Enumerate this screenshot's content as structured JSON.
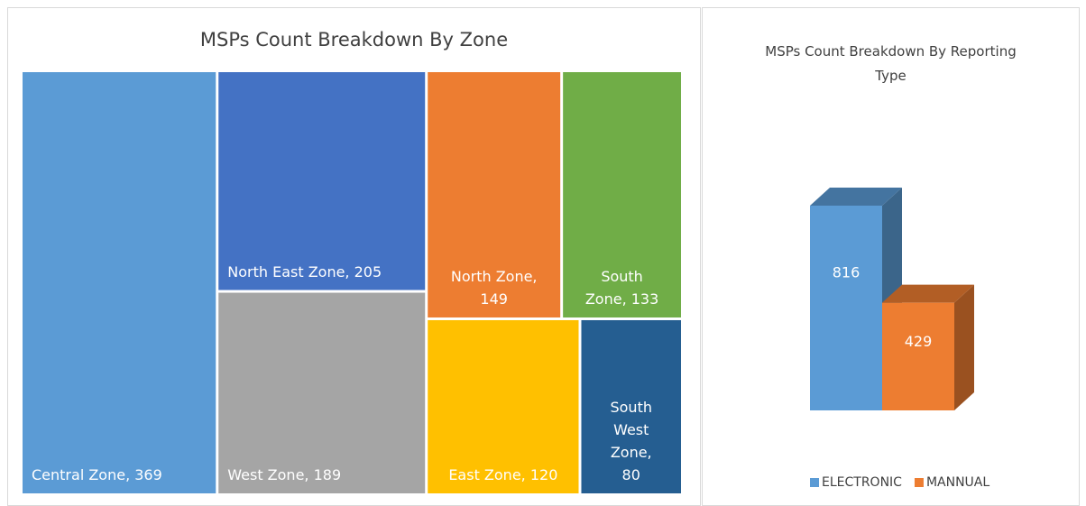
{
  "chart_data": [
    {
      "type": "treemap",
      "title": "MSPs Count Breakdown By Zone",
      "values": [
        369,
        205,
        189,
        149,
        133,
        120,
        80
      ],
      "value_labels": [
        "Central Zone, 369",
        "North East Zone, 205",
        "West Zone, 189",
        "North Zone, 149",
        "South Zone, 133",
        "East Zone, 120",
        "South West Zone, 80"
      ],
      "colors": [
        "#5b9bd5",
        "#4472c4",
        "#a5a5a5",
        "#ed7d31",
        "#70ad47",
        "#ffc000",
        "#255e91"
      ]
    },
    {
      "type": "bar3d",
      "title": "MSPs Count Breakdown By Reporting Type",
      "categories": [
        "ELECTRONIC",
        "MANNUAL"
      ],
      "values": [
        816,
        429
      ],
      "colors": [
        "#5b9bd5",
        "#ed7d31"
      ],
      "legend": "bottom"
    }
  ]
}
